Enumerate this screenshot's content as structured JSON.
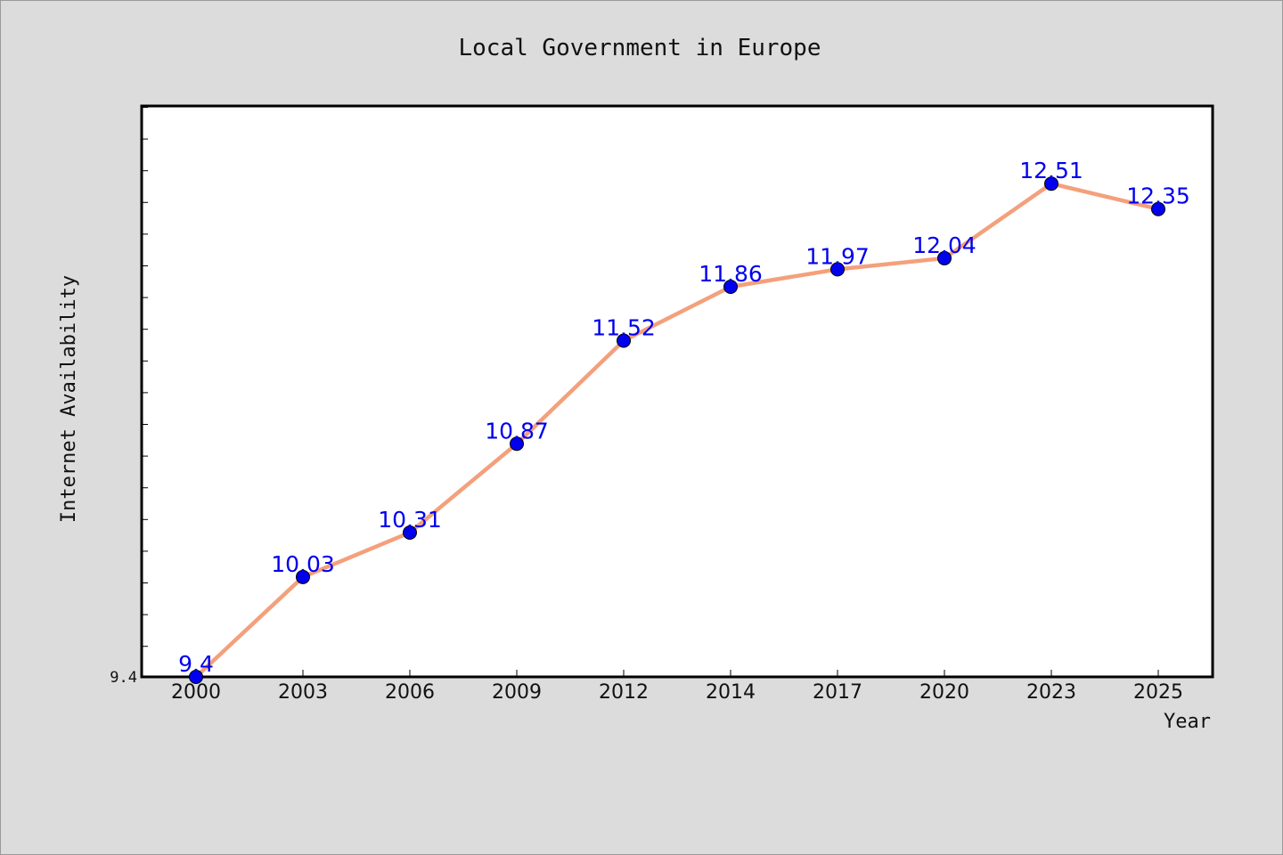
{
  "chart_data": {
    "type": "line",
    "title": "Local Government in Europe",
    "xlabel": "Year",
    "ylabel": "Internet Availability",
    "categories": [
      "2000",
      "2003",
      "2006",
      "2009",
      "2012",
      "2014",
      "2017",
      "2020",
      "2023",
      "2025"
    ],
    "series": [
      {
        "values": [
          9.4,
          10.03,
          10.31,
          10.87,
          11.52,
          11.86,
          11.97,
          12.04,
          12.51,
          12.35
        ],
        "data_labels": [
          "9.4",
          "10.03",
          "10.31",
          "10.87",
          "11.52",
          "11.86",
          "11.97",
          "12.04",
          "12.51",
          "12.35"
        ],
        "line_color": "#f4a07c",
        "marker_color": "#0000ee",
        "label_color": "#0000ee"
      }
    ],
    "y_tick_labels": [
      "9.4"
    ],
    "ylim": [
      9.4,
      13.0
    ],
    "grid": false,
    "legend": "none",
    "background": "#dcdcdc",
    "plot_background": "#ffffff"
  }
}
